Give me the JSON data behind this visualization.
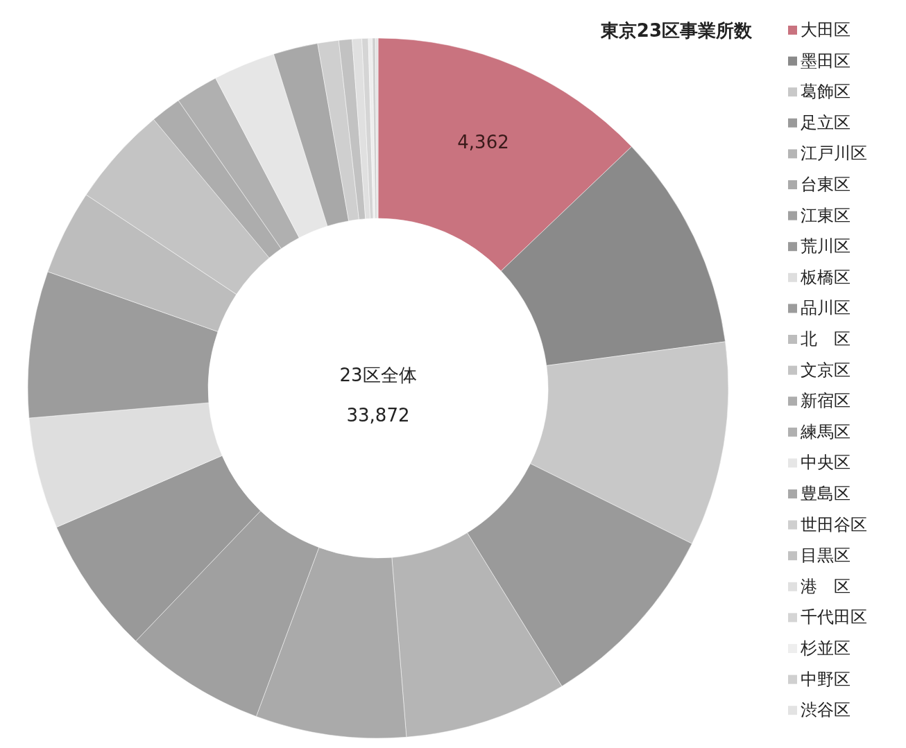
{
  "chart_data": {
    "type": "donut",
    "title": "東京23区事業所数",
    "categories": [
      "大田区",
      "墨田区",
      "葛飾区",
      "足立区",
      "江戸川区",
      "台東区",
      "江東区",
      "荒川区",
      "板橋区",
      "品川区",
      "北　区",
      "文京区",
      "新宿区",
      "練馬区",
      "中央区",
      "豊島区",
      "世田谷区",
      "目黒区",
      "港　区",
      "千代田区",
      "杉並区",
      "中野区",
      "渋谷区"
    ],
    "values": [
      4362,
      3387,
      3199,
      3011,
      2540,
      2352,
      2202,
      2150,
      1741,
      2290,
      1327,
      1562,
      480,
      668,
      969,
      696,
      329,
      207,
      150,
      100,
      60,
      50,
      40
    ],
    "colors": [
      "#c9737f",
      "#8a8a8a",
      "#c8c8c8",
      "#9a9a9a",
      "#b5b5b5",
      "#aaaaaa",
      "#a0a0a0",
      "#999999",
      "#dedede",
      "#9c9c9c",
      "#bdbdbd",
      "#c4c4c4",
      "#adadad",
      "#b0b0b0",
      "#e6e6e6",
      "#a8a8a8",
      "#cfcfcf",
      "#c2c2c2",
      "#e0e0e0",
      "#d5d5d5",
      "#eeeeee",
      "#d0d0d0",
      "#e3e3e3"
    ],
    "value_labels": [
      "4,362",
      null,
      null,
      null,
      null,
      null,
      null,
      null,
      null,
      null,
      null,
      null,
      null,
      null,
      null,
      null,
      null,
      null,
      null,
      null,
      null,
      null,
      null
    ],
    "annotations": [
      "23区全体",
      "33,872"
    ],
    "legend": "right"
  }
}
